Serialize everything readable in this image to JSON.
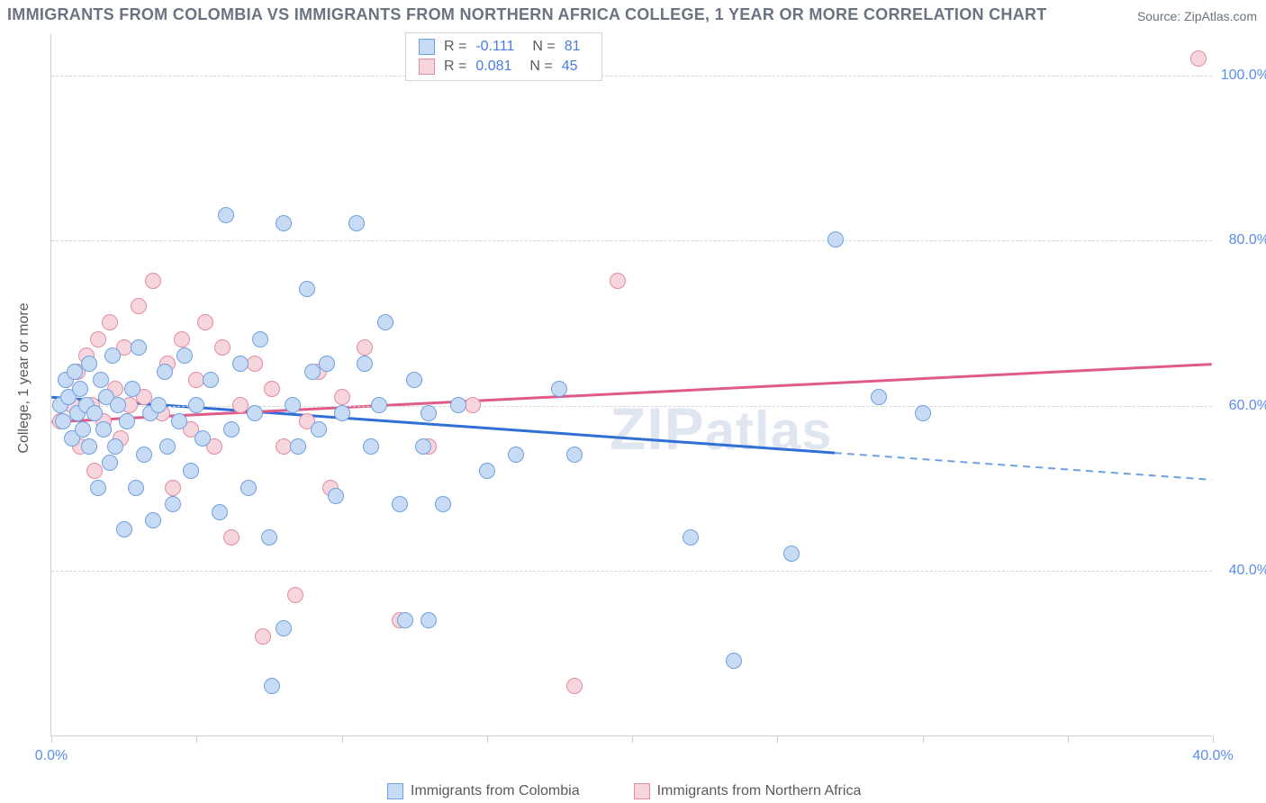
{
  "title": "IMMIGRANTS FROM COLOMBIA VS IMMIGRANTS FROM NORTHERN AFRICA COLLEGE, 1 YEAR OR MORE CORRELATION CHART",
  "source_label": "Source: ZipAtlas.com",
  "y_axis_label": "College, 1 year or more",
  "watermark": "ZIPatlas",
  "chart": {
    "type": "scatter",
    "xlim": [
      0,
      40
    ],
    "ylim": [
      20,
      105
    ],
    "x_ticks": [
      0,
      5,
      10,
      15,
      20,
      25,
      30,
      35,
      40
    ],
    "x_tick_labels_shown": {
      "0": "0.0%",
      "40": "40.0%"
    },
    "y_gridlines": [
      40,
      60,
      80,
      100
    ],
    "y_tick_labels": {
      "40": "40.0%",
      "60": "60.0%",
      "80": "80.0%",
      "100": "100.0%"
    },
    "background_color": "#ffffff",
    "grid_color": "#d4d4d4",
    "axis_color": "#cfcfcf",
    "point_radius": 9,
    "series": [
      {
        "name": "Immigrants from Colombia",
        "fill": "#c8dbf4",
        "stroke": "#6fa0e0",
        "trend_color": "#2f6fd6",
        "trend": {
          "x0": 0,
          "y0": 61,
          "x1": 40,
          "y1": 51,
          "solid_until_x": 27
        },
        "R": "-0.111",
        "N": "81",
        "points": [
          [
            0.3,
            60
          ],
          [
            0.4,
            58
          ],
          [
            0.5,
            63
          ],
          [
            0.6,
            61
          ],
          [
            0.7,
            56
          ],
          [
            0.8,
            64
          ],
          [
            0.9,
            59
          ],
          [
            1.0,
            62
          ],
          [
            1.1,
            57
          ],
          [
            1.2,
            60
          ],
          [
            1.3,
            55
          ],
          [
            1.3,
            65
          ],
          [
            1.5,
            59
          ],
          [
            1.6,
            50
          ],
          [
            1.7,
            63
          ],
          [
            1.8,
            57
          ],
          [
            1.9,
            61
          ],
          [
            2.0,
            53
          ],
          [
            2.1,
            66
          ],
          [
            2.2,
            55
          ],
          [
            2.3,
            60
          ],
          [
            2.5,
            45
          ],
          [
            2.6,
            58
          ],
          [
            2.8,
            62
          ],
          [
            2.9,
            50
          ],
          [
            3.0,
            67
          ],
          [
            3.2,
            54
          ],
          [
            3.4,
            59
          ],
          [
            3.5,
            46
          ],
          [
            3.7,
            60
          ],
          [
            3.9,
            64
          ],
          [
            4.0,
            55
          ],
          [
            4.2,
            48
          ],
          [
            4.4,
            58
          ],
          [
            4.6,
            66
          ],
          [
            4.8,
            52
          ],
          [
            5.0,
            60
          ],
          [
            5.2,
            56
          ],
          [
            5.5,
            63
          ],
          [
            5.8,
            47
          ],
          [
            6.0,
            83
          ],
          [
            6.2,
            57
          ],
          [
            6.5,
            65
          ],
          [
            6.8,
            50
          ],
          [
            7.0,
            59
          ],
          [
            7.2,
            68
          ],
          [
            7.5,
            44
          ],
          [
            7.6,
            26
          ],
          [
            8.0,
            82
          ],
          [
            8.0,
            33
          ],
          [
            8.3,
            60
          ],
          [
            8.5,
            55
          ],
          [
            8.8,
            74
          ],
          [
            9.0,
            64
          ],
          [
            9.2,
            57
          ],
          [
            9.5,
            65
          ],
          [
            9.8,
            49
          ],
          [
            10.0,
            59
          ],
          [
            10.5,
            82
          ],
          [
            10.8,
            65
          ],
          [
            11.0,
            55
          ],
          [
            11.3,
            60
          ],
          [
            11.5,
            70
          ],
          [
            12.0,
            48
          ],
          [
            12.2,
            34
          ],
          [
            12.5,
            63
          ],
          [
            12.8,
            55
          ],
          [
            13.0,
            59
          ],
          [
            13.0,
            34
          ],
          [
            13.5,
            48
          ],
          [
            14.0,
            60
          ],
          [
            15.0,
            52
          ],
          [
            16.0,
            54
          ],
          [
            17.5,
            62
          ],
          [
            18.0,
            54
          ],
          [
            22.0,
            44
          ],
          [
            23.5,
            29
          ],
          [
            25.5,
            42
          ],
          [
            27.0,
            80
          ],
          [
            28.5,
            61
          ],
          [
            30.0,
            59
          ]
        ]
      },
      {
        "name": "Immigrants from Northern Africa",
        "fill": "#f6d5dd",
        "stroke": "#e28ca1",
        "trend_color": "#e05a8a",
        "trend": {
          "x0": 0,
          "y0": 58,
          "x1": 40,
          "y1": 65,
          "solid_until_x": 40
        },
        "R": "0.081",
        "N": "45",
        "points": [
          [
            0.3,
            58
          ],
          [
            0.5,
            63
          ],
          [
            0.7,
            60
          ],
          [
            0.9,
            64
          ],
          [
            1.0,
            55
          ],
          [
            1.2,
            66
          ],
          [
            1.4,
            60
          ],
          [
            1.5,
            52
          ],
          [
            1.6,
            68
          ],
          [
            1.8,
            58
          ],
          [
            2.0,
            70
          ],
          [
            2.2,
            62
          ],
          [
            2.4,
            56
          ],
          [
            2.5,
            67
          ],
          [
            2.7,
            60
          ],
          [
            3.0,
            72
          ],
          [
            3.2,
            61
          ],
          [
            3.5,
            75
          ],
          [
            3.8,
            59
          ],
          [
            4.0,
            65
          ],
          [
            4.2,
            50
          ],
          [
            4.5,
            68
          ],
          [
            4.8,
            57
          ],
          [
            5.0,
            63
          ],
          [
            5.3,
            70
          ],
          [
            5.6,
            55
          ],
          [
            5.9,
            67
          ],
          [
            6.2,
            44
          ],
          [
            6.5,
            60
          ],
          [
            7.0,
            65
          ],
          [
            7.3,
            32
          ],
          [
            7.6,
            62
          ],
          [
            8.0,
            55
          ],
          [
            8.4,
            37
          ],
          [
            8.8,
            58
          ],
          [
            9.2,
            64
          ],
          [
            9.6,
            50
          ],
          [
            10.0,
            61
          ],
          [
            10.8,
            67
          ],
          [
            12.0,
            34
          ],
          [
            13.0,
            55
          ],
          [
            14.5,
            60
          ],
          [
            18.0,
            26
          ],
          [
            19.5,
            75
          ],
          [
            39.5,
            102
          ]
        ]
      }
    ],
    "legend_top": [
      {
        "swatch_fill": "#c8dbf4",
        "swatch_stroke": "#6fa0e0",
        "R": "-0.111",
        "N": "81"
      },
      {
        "swatch_fill": "#f6d5dd",
        "swatch_stroke": "#e28ca1",
        "R": "0.081",
        "N": "45"
      }
    ],
    "legend_bottom": [
      {
        "swatch_fill": "#c8dbf4",
        "swatch_stroke": "#6fa0e0",
        "label": "Immigrants from Colombia"
      },
      {
        "swatch_fill": "#f6d5dd",
        "swatch_stroke": "#e28ca1",
        "label": "Immigrants from Northern Africa"
      }
    ]
  },
  "label_color": "#5b8def",
  "text_color": "#5a5a5a",
  "title_color": "#6b7280"
}
